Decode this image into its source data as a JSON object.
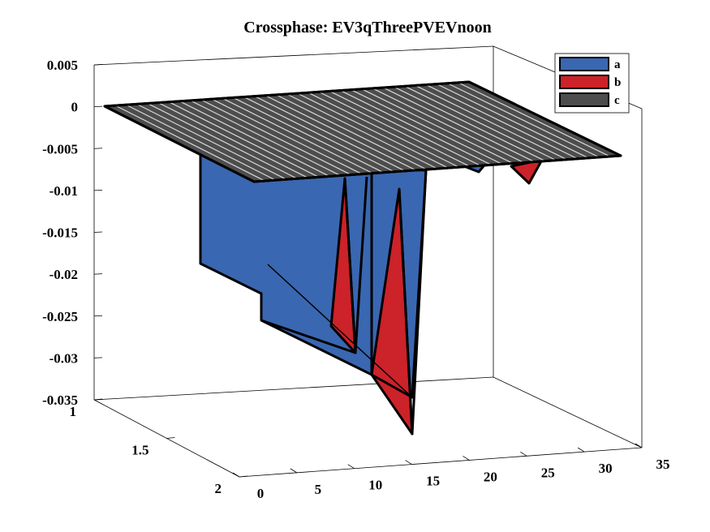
{
  "chart_data": {
    "type": "surface3d",
    "title": "Crossphase: EV3qThreePVEVnoon",
    "xlabel": "",
    "ylabel": "",
    "zlabel": "",
    "xlim": [
      0,
      35
    ],
    "ylim": [
      1,
      2
    ],
    "zlim": [
      -0.035,
      0.005
    ],
    "x_ticks": [
      "0",
      "5",
      "10",
      "15",
      "20",
      "25",
      "30",
      "35"
    ],
    "y_ticks": [
      "1",
      "1.5",
      "2"
    ],
    "z_ticks": [
      "0.005",
      "0",
      "-0.005",
      "-0.01",
      "-0.015",
      "-0.02",
      "-0.025",
      "-0.03",
      "-0.035"
    ],
    "legend_position": "top-right",
    "series": [
      {
        "name": "a",
        "color": "#3a67b1",
        "points": [
          {
            "x": 9,
            "z": 0
          },
          {
            "x": 9,
            "z": -0.019
          },
          {
            "x": 14,
            "z": -0.025
          },
          {
            "x": 16,
            "z": -0.0295
          },
          {
            "x": 19,
            "z": -0.0325
          },
          {
            "x": 24,
            "z": -0.035
          },
          {
            "x": 30,
            "z": 0
          }
        ]
      },
      {
        "name": "b",
        "color": "#cc2229",
        "points": [
          {
            "x": 14,
            "z": -0.0275
          },
          {
            "x": 17,
            "z": -0.011
          },
          {
            "x": 18,
            "z": -0.03
          },
          {
            "x": 20,
            "z": -0.032
          },
          {
            "x": 22,
            "z": -0.011
          },
          {
            "x": 25,
            "z": -0.039
          },
          {
            "x": 32,
            "z": -0.0065
          }
        ]
      },
      {
        "name": "c",
        "color": "#4d4d4d",
        "points": [
          {
            "x": 0,
            "z": 0
          },
          {
            "x": 35,
            "z": 0
          }
        ]
      }
    ]
  }
}
